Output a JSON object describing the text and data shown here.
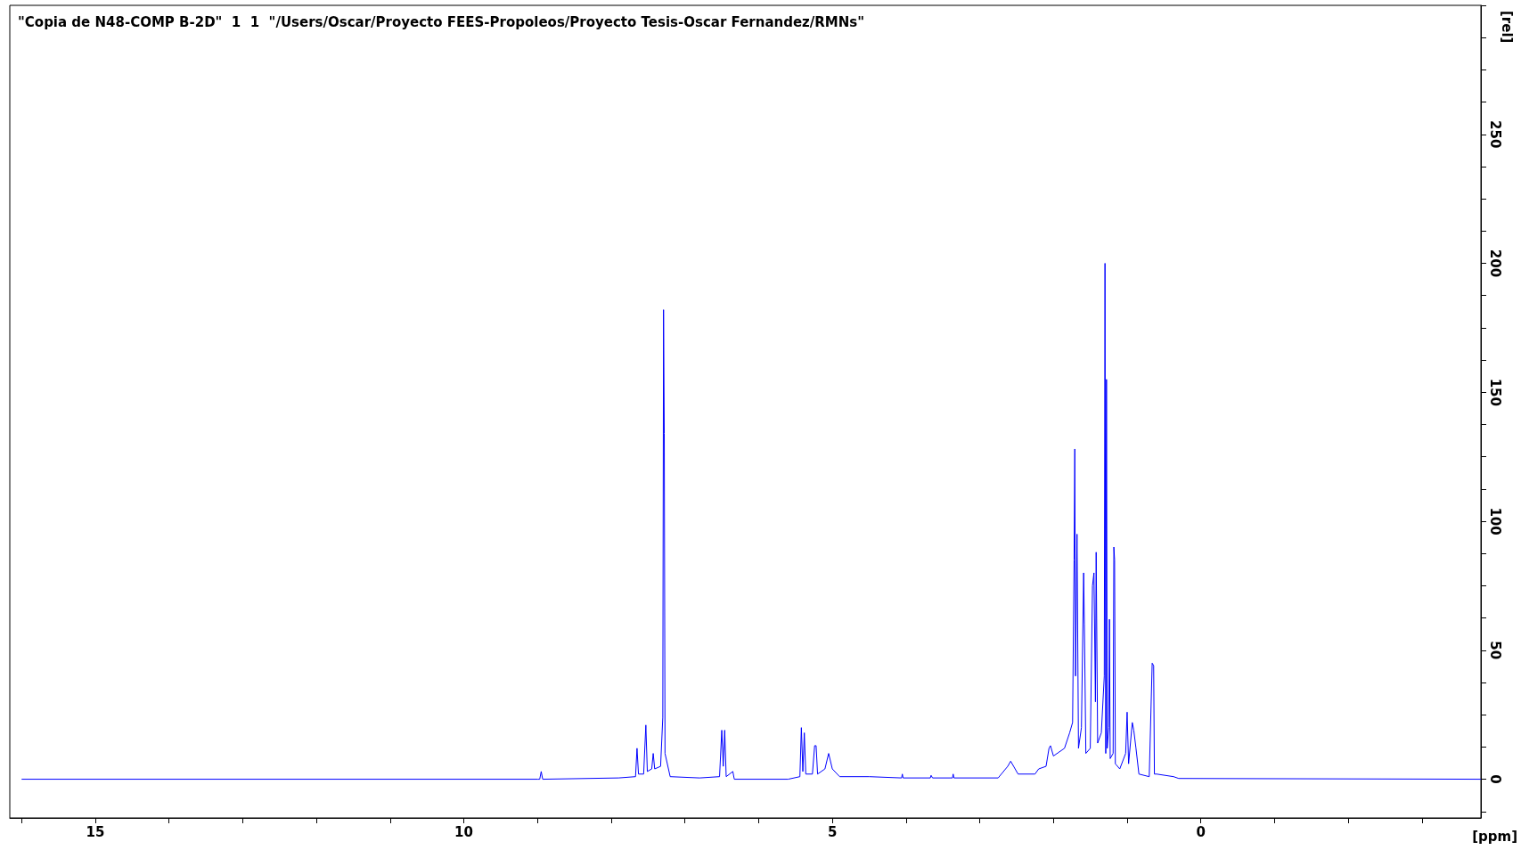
{
  "chart_data": {
    "type": "line",
    "title": "\"Copia de N48-COMP B-2D\"  1  1  \"/Users/Oscar/Proyecto FEES-Propoleos/Proyecto Tesis-Oscar Fernandez/RMNs\"",
    "xlabel": "[ppm]",
    "ylabel": "[rel]",
    "xlim": [
      16.16,
      -3.8
    ],
    "xticks": [
      {
        "value": 16,
        "label": null
      },
      15,
      {
        "value": 14,
        "label": null
      },
      {
        "value": 13,
        "label": null
      },
      {
        "value": 12,
        "label": null
      },
      {
        "value": 11,
        "label": null
      },
      10,
      {
        "value": 9,
        "label": null
      },
      {
        "value": 8,
        "label": null
      },
      {
        "value": 7,
        "label": null
      },
      {
        "value": 6,
        "label": null
      },
      5,
      {
        "value": 4,
        "label": null
      },
      {
        "value": 3,
        "label": null
      },
      {
        "value": 2,
        "label": null
      },
      {
        "value": 1,
        "label": null
      },
      0,
      {
        "value": -1,
        "label": null
      },
      {
        "value": -2,
        "label": null
      },
      {
        "value": -3,
        "label": null
      }
    ],
    "ylim": [
      -15,
      300
    ],
    "yticks": [
      {
        "value": -12.5,
        "label": null
      },
      0,
      {
        "value": 12.5,
        "label": null
      },
      {
        "value": 25,
        "label": null
      },
      {
        "value": 37.5,
        "label": null
      },
      50,
      {
        "value": 62.5,
        "label": null
      },
      {
        "value": 75,
        "label": null
      },
      {
        "value": 87.5,
        "label": null
      },
      100,
      {
        "value": 112.5,
        "label": null
      },
      {
        "value": 125,
        "label": null
      },
      {
        "value": 137.5,
        "label": null
      },
      150,
      {
        "value": 162.5,
        "label": null
      },
      {
        "value": 175,
        "label": null
      },
      {
        "value": 187.5,
        "label": null
      },
      200,
      {
        "value": 212.5,
        "label": null
      },
      {
        "value": 225,
        "label": null
      },
      {
        "value": 237.5,
        "label": null
      },
      250,
      {
        "value": 262.5,
        "label": null
      },
      {
        "value": 275,
        "label": null
      },
      {
        "value": 287.5,
        "label": null
      },
      {
        "value": 300,
        "label": null
      }
    ],
    "marker": "none",
    "grid": false,
    "series": [
      {
        "color": "#0000ff",
        "x": [
          16.0,
          9.0,
          8.97,
          8.95,
          8.93,
          7.9,
          7.67,
          7.65,
          7.63,
          7.56,
          7.53,
          7.51,
          7.45,
          7.43,
          7.41,
          7.33,
          7.3,
          7.29,
          7.28,
          7.27,
          7.2,
          6.8,
          6.53,
          6.5,
          6.48,
          6.46,
          6.44,
          6.35,
          6.33,
          5.6,
          5.44,
          5.42,
          5.4,
          5.38,
          5.36,
          5.27,
          5.24,
          5.22,
          5.2,
          5.1,
          5.05,
          5.0,
          4.9,
          4.5,
          4.06,
          4.05,
          4.04,
          3.67,
          3.66,
          3.64,
          3.37,
          3.36,
          3.35,
          2.75,
          2.62,
          2.58,
          2.54,
          2.48,
          2.25,
          2.2,
          2.1,
          2.06,
          2.04,
          2.0,
          1.85,
          1.78,
          1.74,
          1.72,
          1.71,
          1.7,
          1.68,
          1.66,
          1.62,
          1.59,
          1.58,
          1.56,
          1.5,
          1.47,
          1.45,
          1.43,
          1.42,
          1.4,
          1.35,
          1.31,
          1.3,
          1.29,
          1.28,
          1.27,
          1.25,
          1.24,
          1.23,
          1.19,
          1.18,
          1.17,
          1.16,
          1.1,
          1.02,
          1.0,
          0.98,
          0.93,
          0.91,
          0.88,
          0.84,
          0.7,
          0.66,
          0.64,
          0.63,
          0.6,
          0.37,
          0.3,
          -3.8
        ],
        "values": [
          0,
          0,
          0,
          3,
          0,
          0.5,
          1,
          12,
          2,
          2,
          21,
          3,
          4,
          10,
          4,
          5,
          24,
          182,
          134,
          10,
          1,
          0.5,
          1,
          19,
          5,
          19,
          1,
          3,
          0,
          0,
          1,
          20,
          3,
          18,
          2,
          2,
          13,
          13,
          2,
          4,
          10,
          4,
          1,
          1,
          0.5,
          2,
          0.5,
          0.5,
          1.5,
          0.5,
          0.5,
          2,
          0.5,
          0.5,
          5,
          7,
          5,
          2,
          2,
          4,
          5,
          12,
          13,
          9,
          12,
          18,
          22,
          85,
          128,
          40,
          95,
          12,
          20,
          80,
          60,
          10,
          12,
          75,
          80,
          30,
          88,
          14,
          18,
          40,
          200,
          10,
          155,
          12,
          20,
          62,
          8,
          10,
          90,
          85,
          6,
          4,
          10,
          26,
          6,
          22,
          19,
          12,
          2,
          1,
          45,
          44,
          2,
          2,
          1,
          0.3,
          0
        ]
      }
    ]
  }
}
